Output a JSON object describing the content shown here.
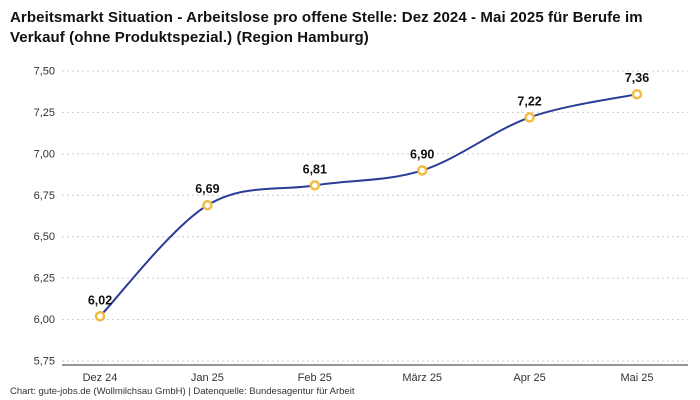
{
  "title": "Arbeitsmarkt Situation - Arbeitslose pro offene Stelle: Dez 2024 - Mai 2025 für Berufe im Verkauf (ohne Produktspezial.) (Region Hamburg)",
  "footer": "Chart: gute-jobs.de (Wollmilchsau GmbH) | Datenquelle: Bundesagentur für Arbeit",
  "chart_data": {
    "type": "line",
    "title": "Arbeitsmarkt Situation - Arbeitslose pro offene Stelle: Dez 2024 - Mai 2025 für Berufe im Verkauf (ohne Produktspezial.) (Region Hamburg)",
    "categories": [
      "Dez 24",
      "Jan 25",
      "Feb 25",
      "März 25",
      "Apr 25",
      "Mai 25"
    ],
    "values": [
      6.02,
      6.69,
      6.81,
      6.9,
      7.22,
      7.36
    ],
    "value_labels": [
      "6,02",
      "6,69",
      "6,81",
      "6,90",
      "7,22",
      "7,36"
    ],
    "ylim": [
      5.75,
      7.5
    ],
    "ytick_step": 0.25,
    "ytick_labels": [
      "5,75",
      "6,00",
      "6,25",
      "6,50",
      "6,75",
      "7,00",
      "7,25",
      "7,50"
    ],
    "xlabel": "",
    "ylabel": "",
    "grid": "horizontal-dashed",
    "legend": "none",
    "colors": {
      "line": "#2b3c97",
      "marker_stroke": "#eebd41",
      "marker_fill": "#ffffff",
      "gridline": "#cccccc",
      "baseline": "#2b2b2b",
      "tick_text": "#333333",
      "value_text": "#111111"
    }
  }
}
